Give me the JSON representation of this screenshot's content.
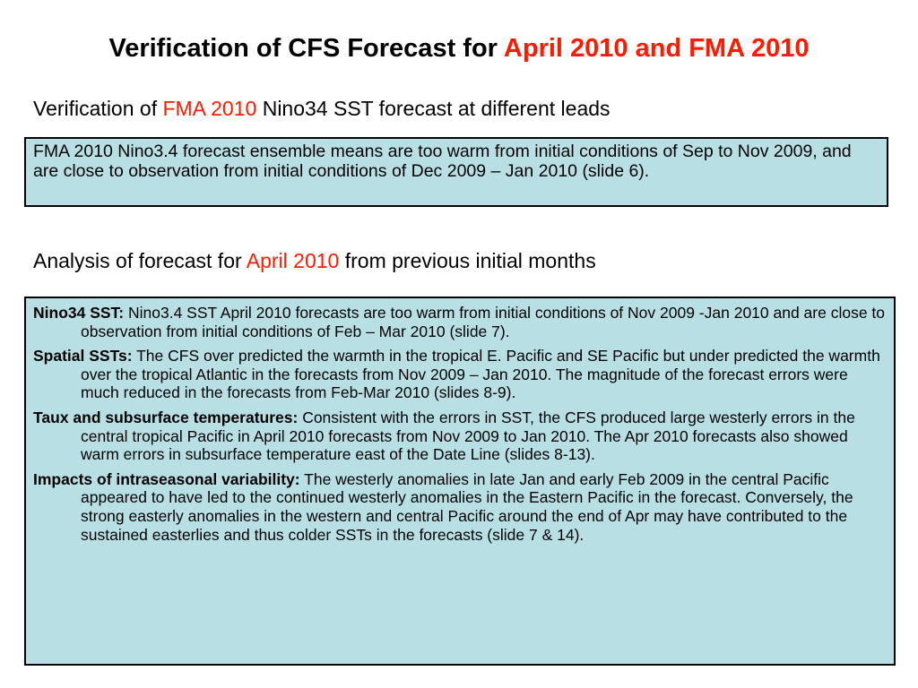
{
  "title": {
    "prefix": "Verification of CFS Forecast for ",
    "highlight": "April 2010 and FMA 2010"
  },
  "section1": {
    "heading_prefix": "Verification of ",
    "heading_highlight": "FMA 2010",
    "heading_suffix": " Nino34 SST forecast at different leads",
    "text": "FMA 2010 Nino3.4 forecast ensemble means are too warm from initial conditions of Sep to Nov 2009, and are close to observation from initial conditions of Dec 2009 – Jan 2010 (slide 6)."
  },
  "section2": {
    "heading_prefix": "Analysis of forecast for ",
    "heading_highlight": "April 2010",
    "heading_suffix": " from previous initial months",
    "items": [
      {
        "label": "Nino34 SST:",
        "text": " Nino3.4 SST April 2010 forecasts are too warm from initial conditions of Nov 2009 -Jan 2010 and are close to observation from initial conditions of Feb – Mar 2010 (slide 7)."
      },
      {
        "label": "Spatial SSTs:",
        "text": " The CFS over predicted the warmth in the tropical E. Pacific and SE Pacific but under predicted the warmth over the tropical Atlantic in the forecasts from Nov 2009 – Jan 2010. The magnitude of the forecast errors were much reduced in the forecasts from Feb-Mar 2010 (slides 8-9)."
      },
      {
        "label": "Taux and subsurface temperatures:",
        "text": " Consistent with the errors in SST, the CFS produced large westerly errors in the central tropical Pacific in April 2010 forecasts from Nov 2009 to Jan 2010.  The Apr 2010 forecasts also showed warm errors in subsurface temperature east of the Date Line (slides 8-13)."
      },
      {
        "label": "Impacts of intraseasonal variability:",
        "text": " The westerly anomalies in late Jan and early Feb 2009 in the central Pacific appeared to have led to the continued westerly anomalies in the Eastern Pacific in the forecast.  Conversely, the strong easterly anomalies in the western and central Pacific around the end of Apr may have contributed to the sustained easterlies and thus colder SSTs in the forecasts (slide 7 & 14)."
      }
    ]
  },
  "colors": {
    "highlight": "#ff1a00",
    "box_background": "#b8e0e4",
    "border": "#000000"
  }
}
